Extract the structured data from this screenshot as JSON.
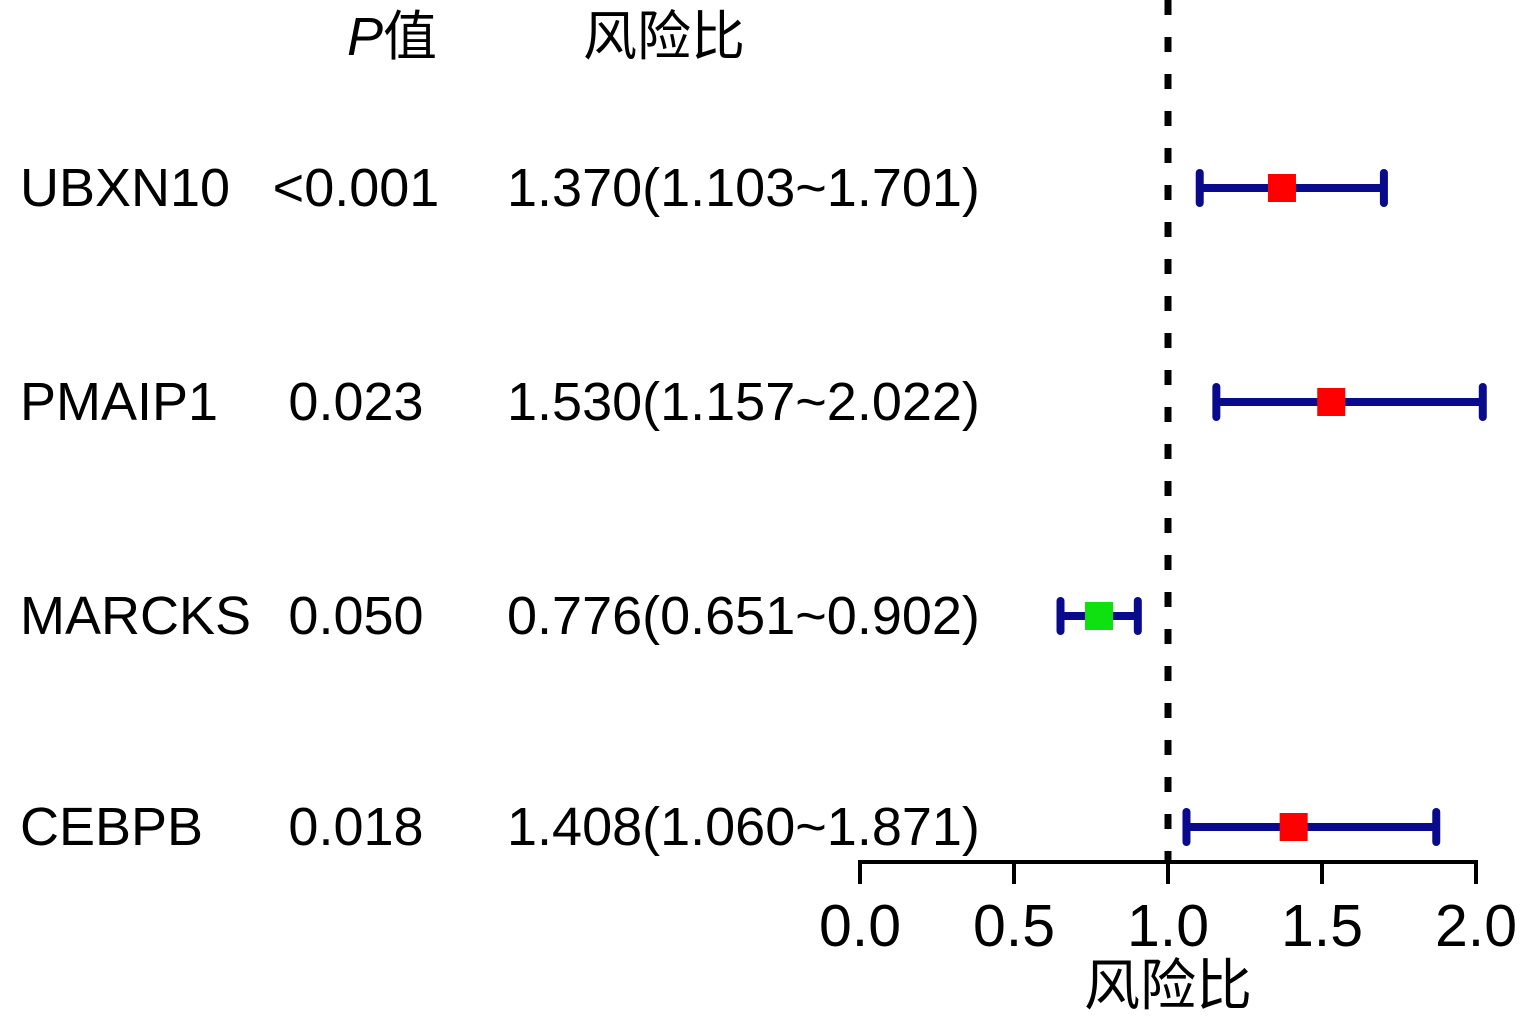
{
  "header": {
    "p_label_italic": "P",
    "p_label_suffix": "值",
    "hr_label": "风险比"
  },
  "rows": [
    {
      "gene": "UBXN10",
      "p_value": "<0.001",
      "hr_text": "1.370(1.103~1.701)"
    },
    {
      "gene": "PMAIP1",
      "p_value": "0.023",
      "hr_text": "1.530(1.157~2.022)"
    },
    {
      "gene": "MARCKS",
      "p_value": "0.050",
      "hr_text": "0.776(0.651~0.902)"
    },
    {
      "gene": "CEBPB",
      "p_value": "0.018",
      "hr_text": "1.408(1.060~1.871)"
    }
  ],
  "axis": {
    "ticks": [
      "0.0",
      "0.5",
      "1.0",
      "1.5",
      "2.0"
    ],
    "label": "风险比"
  },
  "chart_data": {
    "type": "scatter",
    "subtype": "forest-plot",
    "categories": [
      "UBXN10",
      "PMAIP1",
      "MARCKS",
      "CEBPB"
    ],
    "series": [
      {
        "name": "hazard_ratio",
        "values": [
          1.37,
          1.53,
          0.776,
          1.408
        ]
      },
      {
        "name": "ci_low",
        "values": [
          1.103,
          1.157,
          0.651,
          1.06
        ]
      },
      {
        "name": "ci_high",
        "values": [
          1.701,
          2.022,
          0.902,
          1.871
        ]
      }
    ],
    "p_values": [
      "<0.001",
      "0.023",
      "0.050",
      "0.018"
    ],
    "hr_labels": [
      "1.370(1.103~1.701)",
      "1.530(1.157~2.022)",
      "0.776(0.651~0.902)",
      "1.408(1.060~1.871)"
    ],
    "marker_colors": [
      "#FF0000",
      "#FF0000",
      "#0FE00F",
      "#FF0000"
    ],
    "column_headers": {
      "p": "P值",
      "hr": "风险比"
    },
    "xlabel": "风险比",
    "xlim": [
      0,
      2
    ],
    "x_ticks": [
      0.0,
      0.5,
      1.0,
      1.5,
      2.0
    ],
    "x_tick_labels": [
      "0.0",
      "0.5",
      "1.0",
      "1.5",
      "2.0"
    ],
    "reference_line": 1.0,
    "grid": false,
    "colors": {
      "error_bar": "#0A0A8C",
      "marker_risk": "#FF0000",
      "marker_protective": "#0FE00F",
      "reference_line": "#000000",
      "axis": "#000000"
    }
  }
}
